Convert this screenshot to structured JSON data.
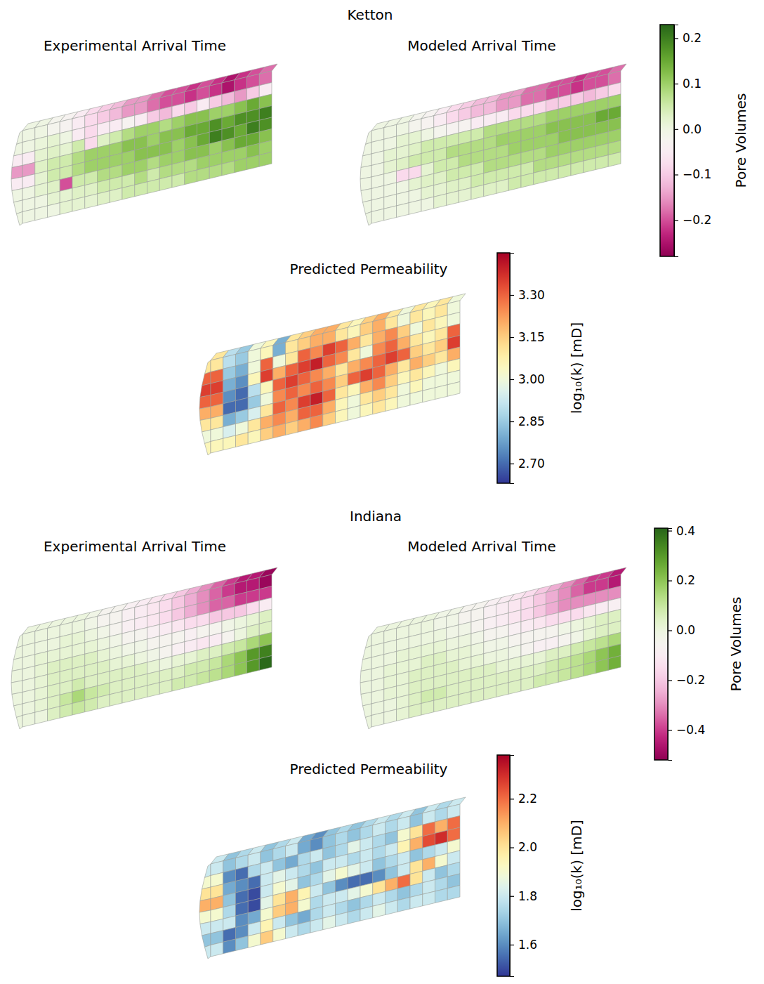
{
  "chart_data": [
    {
      "type": "heatmap",
      "suptitle": "Ketton",
      "title": "Experimental Arrival Time",
      "color": "PiYG",
      "values": [
        [
          0,
          0,
          -0.02,
          -0.03,
          -0.05,
          -0.08,
          -0.1,
          -0.12,
          -0.15,
          -0.15,
          -0.18,
          -0.2,
          -0.2,
          -0.22,
          -0.2,
          -0.22,
          -0.25,
          -0.22,
          -0.2,
          -0.18
        ],
        [
          0,
          0.01,
          0.02,
          0,
          -0.05,
          -0.08,
          -0.05,
          -0.05,
          -0.03,
          -0.05,
          -0.1,
          -0.12,
          -0.08,
          -0.1,
          -0.05,
          -0.1,
          -0.12,
          -0.15,
          -0.1,
          -0.05
        ],
        [
          -0.05,
          0.02,
          0.03,
          0.02,
          0.05,
          -0.08,
          0.03,
          0.05,
          0.08,
          0.1,
          0.1,
          0.08,
          0.1,
          0.12,
          0.12,
          0.1,
          0.1,
          0.12,
          0.15,
          0.12
        ],
        [
          -0.15,
          0.03,
          0.05,
          0.05,
          0.08,
          0.1,
          0.1,
          0.1,
          0.12,
          0.12,
          0.1,
          0.12,
          0.12,
          0.15,
          0.15,
          0.18,
          0.15,
          0.18,
          0.18,
          0.2
        ],
        [
          -0.05,
          0.02,
          0.05,
          0.05,
          0.08,
          0.1,
          0.1,
          0.1,
          0.1,
          0.12,
          0.12,
          0.12,
          0.1,
          0.12,
          0.15,
          0.2,
          0.18,
          0.15,
          0.2,
          0.18
        ],
        [
          0,
          0.02,
          0.03,
          -0.2,
          0.05,
          0.05,
          0.08,
          0.08,
          0.1,
          0.1,
          0.08,
          0.1,
          0.1,
          0.12,
          0.12,
          0.1,
          0.12,
          0.15,
          0.15,
          0.12
        ],
        [
          0,
          0,
          0.02,
          0.02,
          0.03,
          0.03,
          0.05,
          0.05,
          0.05,
          0.08,
          0.05,
          0.08,
          0.08,
          0.08,
          0.1,
          0.1,
          0.1,
          0.1,
          0.12,
          0.1
        ],
        [
          0,
          0,
          0,
          0.02,
          0.02,
          0.02,
          0.03,
          0.03,
          0.05,
          0.05,
          0.05,
          0.05,
          0.05,
          0.08,
          0.08,
          0.08,
          0.08,
          0.1,
          0.1,
          0.1
        ]
      ]
    },
    {
      "type": "heatmap",
      "title": "Modeled Arrival Time",
      "color": "PiYG",
      "values": [
        [
          0,
          0,
          0,
          -0.02,
          -0.03,
          -0.05,
          -0.08,
          -0.1,
          -0.12,
          -0.12,
          -0.15,
          -0.15,
          -0.18,
          -0.18,
          -0.2,
          -0.2,
          -0.22,
          -0.2,
          -0.2,
          -0.18
        ],
        [
          0,
          0,
          0.02,
          0.02,
          0,
          -0.02,
          -0.03,
          -0.03,
          -0.05,
          -0.05,
          -0.05,
          -0.08,
          -0.08,
          -0.08,
          -0.1,
          -0.1,
          -0.1,
          -0.12,
          -0.1,
          -0.08
        ],
        [
          0,
          0.02,
          0.02,
          0.03,
          0.05,
          0.05,
          0.05,
          0.05,
          0.05,
          0.08,
          0.08,
          0.08,
          0.08,
          0.08,
          0.1,
          0.1,
          0.1,
          0.1,
          0.1,
          0.1
        ],
        [
          0,
          0.02,
          0.03,
          0.05,
          0.05,
          0.05,
          0.08,
          0.08,
          0.08,
          0.08,
          0.1,
          0.1,
          0.1,
          0.1,
          0.12,
          0.12,
          0.12,
          0.12,
          0.15,
          0.15
        ],
        [
          0,
          0,
          -0.08,
          -0.08,
          0.02,
          0.05,
          0.05,
          0.08,
          0.08,
          0.08,
          0.08,
          0.1,
          0.1,
          0.1,
          0.1,
          0.12,
          0.12,
          0.12,
          0.12,
          0.12
        ],
        [
          0,
          0,
          0,
          0.02,
          0.03,
          0.03,
          0.05,
          0.05,
          0.05,
          0.08,
          0.08,
          0.08,
          0.08,
          0.08,
          0.1,
          0.1,
          0.1,
          0.1,
          0.1,
          0.1
        ],
        [
          0,
          0,
          0,
          0,
          0.02,
          0.02,
          0.03,
          0.03,
          0.05,
          0.05,
          0.05,
          0.05,
          0.05,
          0.08,
          0.08,
          0.08,
          0.08,
          0.08,
          0.08,
          0.08
        ],
        [
          0,
          0,
          0,
          0,
          0,
          0.02,
          0.02,
          0.02,
          0.03,
          0.03,
          0.03,
          0.05,
          0.05,
          0.05,
          0.05,
          0.05,
          0.05,
          0.05,
          0.05,
          0.05
        ]
      ],
      "colorbar": {
        "label": "Pore Volumes",
        "range": [
          -0.28,
          0.23
        ],
        "ticks": [
          0.2,
          0.1,
          {
            "value": 0,
            "label": "0.0"
          },
          {
            "value": -0.1,
            "label": "−0.1"
          },
          {
            "value": -0.2,
            "label": "−0.2"
          }
        ]
      }
    },
    {
      "type": "heatmap",
      "title": "Predicted Permeability",
      "color": "RdYlBu_r",
      "values": [
        [
          3.1,
          2.9,
          2.85,
          3.0,
          3.05,
          2.8,
          3.1,
          3.15,
          3.2,
          3.2,
          3.1,
          3.05,
          3.15,
          3.2,
          3.1,
          3.0,
          3.1,
          3.05,
          3.1,
          3.0
        ],
        [
          3.3,
          2.85,
          2.8,
          3.0,
          3.3,
          3.0,
          3.1,
          3.3,
          3.25,
          3.35,
          3.3,
          3.2,
          3.1,
          3.2,
          3.25,
          3.15,
          3.0,
          3.1,
          3.05,
          3.0
        ],
        [
          3.35,
          2.8,
          2.75,
          3.05,
          3.35,
          3.2,
          3.3,
          3.35,
          3.4,
          3.3,
          3.25,
          3.1,
          3.0,
          3.25,
          3.3,
          3.2,
          3.1,
          3.05,
          3.1,
          3.3
        ],
        [
          3.3,
          2.75,
          2.7,
          2.9,
          3.05,
          3.3,
          3.35,
          3.3,
          3.25,
          3.2,
          3.1,
          3.2,
          3.25,
          3.3,
          3.35,
          3.3,
          3.15,
          3.1,
          3.15,
          3.35
        ],
        [
          3.2,
          2.7,
          2.7,
          2.85,
          3.0,
          3.25,
          3.3,
          3.25,
          3.3,
          3.25,
          3.15,
          3.3,
          3.35,
          3.3,
          3.2,
          3.1,
          3.2,
          3.15,
          3.1,
          3.2
        ],
        [
          3.1,
          2.8,
          2.85,
          2.95,
          3.1,
          3.3,
          3.25,
          3.35,
          3.4,
          3.3,
          3.1,
          3.05,
          3.2,
          3.25,
          3.15,
          3.05,
          3.1,
          3.05,
          3.0,
          3.05
        ],
        [
          3.0,
          2.95,
          3.0,
          3.1,
          3.2,
          3.25,
          3.2,
          3.3,
          3.3,
          3.2,
          3.05,
          3.0,
          3.1,
          3.15,
          3.1,
          3.0,
          3.05,
          3.0,
          3.0,
          3.0
        ],
        [
          3.05,
          3.05,
          3.1,
          3.05,
          3.15,
          3.2,
          3.15,
          3.2,
          3.25,
          3.15,
          3.05,
          3.0,
          3.05,
          3.1,
          3.05,
          3.0,
          3.0,
          3.0,
          3.0,
          3.0
        ]
      ],
      "colorbar": {
        "label": "log₁₀(k) [mD]",
        "range": [
          2.63,
          3.45
        ],
        "ticks": [
          {
            "value": 3.3,
            "label": "3.30"
          },
          3.15,
          {
            "value": 3,
            "label": "3.00"
          },
          2.85,
          {
            "value": 2.7,
            "label": "2.70"
          }
        ]
      }
    },
    {
      "type": "heatmap",
      "suptitle": "Indiana",
      "title": "Experimental Arrival Time",
      "color": "PiYG",
      "values": [
        [
          0,
          0,
          0,
          0,
          0,
          -0.02,
          -0.05,
          -0.05,
          -0.08,
          -0.1,
          -0.12,
          -0.15,
          -0.2,
          -0.25,
          -0.3,
          -0.35,
          -0.4,
          -0.45,
          -0.45,
          -0.5
        ],
        [
          0,
          0,
          0,
          0.02,
          0.02,
          0,
          -0.02,
          -0.05,
          -0.08,
          -0.1,
          -0.12,
          -0.15,
          -0.2,
          -0.25,
          -0.3,
          -0.35,
          -0.35,
          -0.4,
          -0.4,
          -0.4
        ],
        [
          0,
          0.02,
          0.02,
          0.02,
          0.02,
          0.02,
          0,
          -0.02,
          -0.05,
          -0.05,
          -0.08,
          -0.1,
          -0.12,
          -0.15,
          -0.15,
          -0.2,
          -0.2,
          -0.2,
          -0.15,
          -0.1
        ],
        [
          0,
          0.02,
          0.05,
          0.05,
          0.05,
          0.05,
          0.02,
          0,
          -0.02,
          -0.02,
          -0.05,
          -0.05,
          -0.05,
          -0.08,
          -0.05,
          -0.05,
          -0.02,
          0,
          0.02,
          0.05
        ],
        [
          0,
          0.02,
          0.05,
          0.05,
          0.05,
          0.05,
          0.05,
          0.02,
          0.02,
          0,
          -0.02,
          -0.05,
          -0.08,
          -0.1,
          -0.12,
          -0.1,
          -0.05,
          0,
          0.05,
          0.05
        ],
        [
          0,
          0.02,
          0.05,
          0.05,
          0.08,
          0.05,
          0.05,
          0.05,
          0.05,
          0.05,
          0.02,
          0,
          0.02,
          0.02,
          0.05,
          0.05,
          0.08,
          0.1,
          0.15,
          0.2
        ],
        [
          0,
          0.02,
          0.05,
          0.1,
          0.15,
          0.1,
          0.08,
          0.05,
          0.05,
          0.05,
          0.05,
          0.05,
          0.05,
          0.08,
          0.08,
          0.1,
          0.15,
          0.2,
          0.3,
          0.35
        ],
        [
          0,
          0,
          0.05,
          0.08,
          0.1,
          0.08,
          0.05,
          0.05,
          0.05,
          0.05,
          0.05,
          0.05,
          0.08,
          0.08,
          0.1,
          0.12,
          0.15,
          0.2,
          0.3,
          0.4
        ]
      ]
    },
    {
      "type": "heatmap",
      "title": "Modeled Arrival Time",
      "color": "PiYG",
      "values": [
        [
          0,
          0,
          0,
          0,
          0,
          -0.02,
          -0.02,
          -0.05,
          -0.05,
          -0.08,
          -0.1,
          -0.12,
          -0.15,
          -0.2,
          -0.25,
          -0.3,
          -0.35,
          -0.4,
          -0.4,
          -0.45
        ],
        [
          0,
          0,
          0,
          0,
          0,
          0,
          -0.02,
          -0.02,
          -0.05,
          -0.08,
          -0.1,
          -0.12,
          -0.15,
          -0.2,
          -0.25,
          -0.3,
          -0.3,
          -0.3,
          -0.3,
          -0.3
        ],
        [
          0,
          0,
          0.02,
          0.02,
          0.02,
          0.02,
          0,
          0,
          -0.02,
          -0.05,
          -0.05,
          -0.08,
          -0.1,
          -0.12,
          -0.15,
          -0.15,
          -0.15,
          -0.12,
          -0.1,
          -0.08
        ],
        [
          0,
          0.02,
          0.02,
          0.02,
          0.05,
          0.05,
          0.02,
          0.02,
          0,
          -0.02,
          -0.02,
          -0.05,
          -0.05,
          -0.05,
          -0.05,
          -0.02,
          0,
          0.02,
          0.05,
          0.05
        ],
        [
          0,
          0.02,
          0.02,
          0.05,
          0.05,
          0.05,
          0.05,
          0.02,
          0.02,
          0,
          0,
          -0.02,
          -0.05,
          -0.08,
          -0.08,
          -0.05,
          -0.02,
          0.02,
          0.05,
          0.05
        ],
        [
          0,
          0.02,
          0.02,
          0.05,
          0.05,
          0.05,
          0.05,
          0.05,
          0.05,
          0.05,
          0.02,
          0.02,
          0.02,
          0.02,
          0.05,
          0.05,
          0.08,
          0.1,
          0.12,
          0.15
        ],
        [
          0,
          0,
          0.02,
          0.05,
          0.08,
          0.08,
          0.05,
          0.05,
          0.05,
          0.05,
          0.05,
          0.05,
          0.05,
          0.05,
          0.08,
          0.1,
          0.12,
          0.15,
          0.2,
          0.25
        ],
        [
          0,
          0,
          0.02,
          0.05,
          0.05,
          0.05,
          0.05,
          0.05,
          0.05,
          0.05,
          0.05,
          0.05,
          0.05,
          0.08,
          0.08,
          0.1,
          0.12,
          0.15,
          0.2,
          0.25
        ]
      ],
      "colorbar": {
        "label": "Pore Volumes",
        "range": [
          -0.52,
          0.41
        ],
        "ticks": [
          0.4,
          0.2,
          {
            "value": 0,
            "label": "0.0"
          },
          {
            "value": -0.2,
            "label": "−0.2"
          },
          {
            "value": -0.4,
            "label": "−0.4"
          }
        ]
      }
    },
    {
      "type": "heatmap",
      "title": "Predicted Permeability",
      "color": "RdYlBu_r",
      "values": [
        [
          1.8,
          1.7,
          1.75,
          1.8,
          1.7,
          1.75,
          1.8,
          1.65,
          1.6,
          1.7,
          1.75,
          1.7,
          1.75,
          1.8,
          1.75,
          1.8,
          1.7,
          1.8,
          1.75,
          1.8
        ],
        [
          1.9,
          1.6,
          1.55,
          1.75,
          1.8,
          1.7,
          1.65,
          1.75,
          1.8,
          1.7,
          1.75,
          1.85,
          1.8,
          1.75,
          1.7,
          1.9,
          2.0,
          2.2,
          2.1,
          2.2
        ],
        [
          2.0,
          1.65,
          1.6,
          1.55,
          1.8,
          1.85,
          1.8,
          1.75,
          1.7,
          1.8,
          1.8,
          1.75,
          1.8,
          1.75,
          1.8,
          1.95,
          2.1,
          2.25,
          2.3,
          2.2
        ],
        [
          2.1,
          1.7,
          1.55,
          1.5,
          1.8,
          1.9,
          1.85,
          1.7,
          1.75,
          1.85,
          1.9,
          1.85,
          1.8,
          1.7,
          1.75,
          1.8,
          1.7,
          1.75,
          1.8,
          1.9
        ],
        [
          1.9,
          1.75,
          1.55,
          1.5,
          1.85,
          2.0,
          2.1,
          1.95,
          1.8,
          1.7,
          1.6,
          1.55,
          1.55,
          1.6,
          1.7,
          1.8,
          2.0,
          2.1,
          1.9,
          1.8
        ],
        [
          1.8,
          1.8,
          1.6,
          1.65,
          1.9,
          2.05,
          2.1,
          1.9,
          1.75,
          1.8,
          1.8,
          1.85,
          1.9,
          2.0,
          2.1,
          2.2,
          2.0,
          1.8,
          1.7,
          1.75
        ],
        [
          1.7,
          1.55,
          1.6,
          1.8,
          1.95,
          1.8,
          1.7,
          1.65,
          1.75,
          1.8,
          1.75,
          1.7,
          1.75,
          1.8,
          1.75,
          1.7,
          1.75,
          1.8,
          1.75,
          1.7
        ],
        [
          1.8,
          1.6,
          1.7,
          1.9,
          2.05,
          1.9,
          1.8,
          1.75,
          1.8,
          1.85,
          1.8,
          1.75,
          1.8,
          1.85,
          1.8,
          1.75,
          1.8,
          1.8,
          1.75,
          1.75
        ]
      ],
      "colorbar": {
        "label": "log₁₀(k) [mD]",
        "range": [
          1.47,
          2.38
        ],
        "ticks": [
          2.2,
          {
            "value": 2,
            "label": "2.0"
          },
          1.8,
          1.6
        ]
      }
    }
  ]
}
